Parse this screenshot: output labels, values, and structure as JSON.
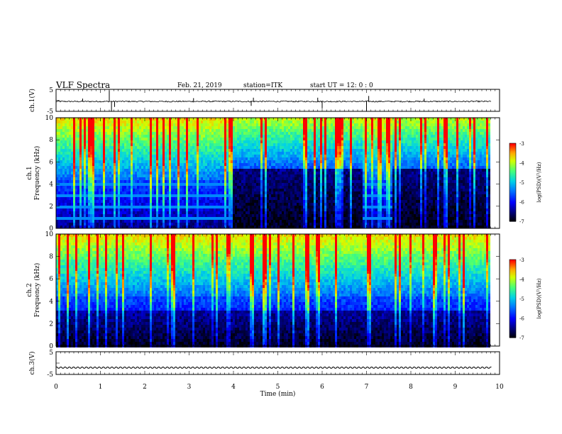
{
  "header": {
    "title": "VLF Spectra",
    "date": "Feb. 21, 2019",
    "station": "station=ITK",
    "start": "start  UT =   12: 0  : 0"
  },
  "chart_data": [
    {
      "type": "line",
      "name": "ch1_waveform",
      "ylabel": "ch.1(V)",
      "ylim": [
        -5,
        5
      ],
      "yticks": [
        "5",
        "-5"
      ],
      "xlim": [
        0,
        10
      ],
      "baseline": -0.5,
      "spikes": [
        {
          "x": 0.6,
          "y": 0.8
        },
        {
          "x": 1.2,
          "y": 4.5
        },
        {
          "x": 1.25,
          "y": -5
        },
        {
          "x": 1.32,
          "y": -3
        },
        {
          "x": 3.1,
          "y": 1.0
        },
        {
          "x": 4.4,
          "y": -2.5
        },
        {
          "x": 4.45,
          "y": 1.2
        },
        {
          "x": 5.9,
          "y": 1.2
        },
        {
          "x": 6.0,
          "y": -3.5
        },
        {
          "x": 7.0,
          "y": -5
        },
        {
          "x": 7.05,
          "y": 2.0
        },
        {
          "x": 8.3,
          "y": 0.8
        }
      ]
    },
    {
      "type": "heatmap",
      "name": "ch1_spectrogram",
      "ylabel": "ch.1 Frequency (kHz)",
      "ylim": [
        0,
        10
      ],
      "yticks": [
        "0",
        "2",
        "4",
        "6",
        "8",
        "10"
      ],
      "xlim": [
        0,
        9.82
      ],
      "quiet_intervals_min": [
        [
          3.95,
          6.9
        ],
        [
          7.55,
          9.82
        ]
      ],
      "interference_lines_khz": [
        1.0,
        2.0,
        3.0,
        4.0
      ],
      "colorbar": {
        "label": "log(PSD)(V²/Hz)",
        "ticks": [
          "-3",
          "-4",
          "-5",
          "-6",
          "-7"
        ],
        "range": [
          -7,
          -3
        ]
      }
    },
    {
      "type": "heatmap",
      "name": "ch2_spectrogram",
      "ylabel": "ch.2 Frequency (kHz)",
      "ylim": [
        0,
        10
      ],
      "yticks": [
        "0",
        "2",
        "4",
        "6",
        "8",
        "10"
      ],
      "xlim": [
        0,
        9.82
      ],
      "colorbar": {
        "label": "log(PSD)(V²/Hz)",
        "ticks": [
          "-3",
          "-4",
          "-5",
          "-6",
          "-7"
        ],
        "range": [
          -7,
          -3
        ]
      }
    },
    {
      "type": "line",
      "name": "ch3_waveform",
      "ylabel": "ch.3(V)",
      "ylim": [
        -5,
        5
      ],
      "yticks": [
        "5",
        "-5"
      ],
      "xlim": [
        0,
        10
      ],
      "baseline": -2.0
    }
  ],
  "xaxis": {
    "label": "Time (min)",
    "ticks": [
      "0",
      "1",
      "2",
      "3",
      "4",
      "5",
      "6",
      "7",
      "8",
      "9",
      "10"
    ]
  },
  "colors": {
    "low": "#000000",
    "mid_low": "#0000ff",
    "mid": "#00c8ff",
    "mid_high": "#55ff44",
    "high": "#ffff00",
    "max": "#ff0000"
  }
}
